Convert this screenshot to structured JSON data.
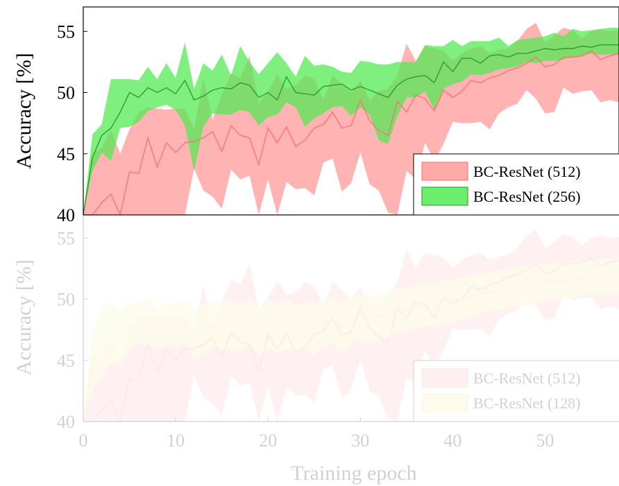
{
  "chart_data": [
    {
      "type": "area",
      "xlabel": "",
      "ylabel": "Accuracy [%]",
      "xlim": [
        0,
        58
      ],
      "ylim": [
        40,
        57
      ],
      "yticks": [
        "40",
        "45",
        "50",
        "55"
      ],
      "xticks": [],
      "legend": {
        "placement": "bottom-right"
      },
      "series": [
        {
          "name": "BC-ResNet (512)",
          "color": "#ff6b6b",
          "fill": "#ff9a9a",
          "x": [
            0,
            1,
            2,
            3,
            4,
            5,
            6,
            7,
            8,
            9,
            10,
            11,
            12,
            13,
            14,
            15,
            16,
            17,
            18,
            19,
            20,
            21,
            22,
            23,
            24,
            25,
            26,
            27,
            28,
            29,
            30,
            31,
            32,
            33,
            34,
            35,
            36,
            37,
            38,
            39,
            40,
            41,
            42,
            43,
            44,
            45,
            46,
            47,
            48,
            49,
            50,
            51,
            52,
            53,
            54,
            55,
            56,
            57,
            58
          ],
          "mean": [
            40,
            37,
            41,
            41.7,
            39.5,
            43.5,
            43.4,
            46.3,
            43.9,
            45.9,
            45.1,
            45.9,
            46,
            46.3,
            46.8,
            45.2,
            47.3,
            46.5,
            46.3,
            44.1,
            47.1,
            45.9,
            47.2,
            45.6,
            46.1,
            47.1,
            47.4,
            48.4,
            47.1,
            47.3,
            49.4,
            47.7,
            46.9,
            46.5,
            49.3,
            48.4,
            49.8,
            49.5,
            48.5,
            50.2,
            49.6,
            50.1,
            51,
            50.8,
            51.2,
            51.4,
            51.8,
            52,
            52.4,
            52.9,
            52.1,
            52.3,
            52.9,
            52.9,
            53,
            53.4,
            52.7,
            53,
            53.2
          ],
          "upper": [
            40,
            45,
            45.5,
            47,
            45,
            47,
            48.4,
            48.8,
            48.7,
            48.6,
            48.7,
            48.7,
            47,
            51.2,
            47.8,
            49.8,
            51.6,
            51.2,
            53,
            49.1,
            50.1,
            51.5,
            50.3,
            50.6,
            51.4,
            51.1,
            49.4,
            51.4,
            50.7,
            50,
            51,
            49.4,
            50.1,
            50.3,
            51.4,
            54,
            52.6,
            53.8,
            53.6,
            53.4,
            52.6,
            53.2,
            53.6,
            53.8,
            53.2,
            53.5,
            53.6,
            54.2,
            55.2,
            55.7,
            54.1,
            54.7,
            55.3,
            55.1,
            54.4,
            55,
            55.2,
            55,
            55.1
          ],
          "lower": [
            40,
            33,
            36,
            37,
            36,
            37,
            38,
            38,
            38,
            38,
            38,
            40,
            43.8,
            42,
            41.5,
            40.5,
            43.7,
            42.9,
            43.2,
            38.5,
            42.9,
            38.6,
            42.7,
            42.1,
            42.2,
            41.6,
            44.3,
            44.6,
            41.9,
            42.6,
            45.1,
            42.5,
            42,
            40.2,
            38.9,
            43.6,
            42.9,
            45.9,
            44.4,
            45.8,
            47.6,
            47.5,
            47.5,
            47.6,
            47,
            48.3,
            48.8,
            49.1,
            50.2,
            49.5,
            48.3,
            48.4,
            50.4,
            49.9,
            50.1,
            50.2,
            49.2,
            49.4,
            49.2
          ]
        },
        {
          "name": "BC-ResNet (256)",
          "color": "#1e9a1e",
          "fill": "#54ea54",
          "x": [
            0,
            1,
            2,
            3,
            4,
            5,
            6,
            7,
            8,
            9,
            10,
            11,
            12,
            13,
            14,
            15,
            16,
            17,
            18,
            19,
            20,
            21,
            22,
            23,
            24,
            25,
            26,
            27,
            28,
            29,
            30,
            31,
            32,
            33,
            34,
            35,
            36,
            37,
            38,
            39,
            40,
            41,
            42,
            43,
            44,
            45,
            46,
            47,
            48,
            49,
            50,
            51,
            52,
            53,
            54,
            55,
            56,
            57,
            58
          ],
          "mean": [
            40,
            44.7,
            46.5,
            47.1,
            48.4,
            50,
            49.6,
            50.4,
            50,
            50.4,
            49.9,
            51,
            49.4,
            49.7,
            50.2,
            50.4,
            50.3,
            50.8,
            50.6,
            49.6,
            50,
            49.4,
            51.3,
            50,
            49.9,
            49.8,
            50.5,
            50.6,
            50.7,
            50.2,
            50.5,
            50.2,
            49.9,
            49.6,
            50.6,
            51.1,
            51.3,
            51.4,
            50.8,
            52.5,
            51.7,
            52.8,
            52.8,
            52.4,
            53,
            53.1,
            52.9,
            53.2,
            53.2,
            53.4,
            53.6,
            53.5,
            53.6,
            53.6,
            53.8,
            53.7,
            53.9,
            53.9,
            53.9
          ],
          "upper": [
            40,
            46.6,
            47.4,
            51.1,
            51.1,
            51.1,
            51,
            52.1,
            51.1,
            52.4,
            51.2,
            54.1,
            50.3,
            52.4,
            51.8,
            53.1,
            51.4,
            53.8,
            52.5,
            51.5,
            52.4,
            53.3,
            52.4,
            51.3,
            53,
            52.2,
            52.3,
            52.1,
            51.7,
            51.6,
            52.6,
            52.5,
            52.3,
            52.3,
            52.5,
            52.5,
            52.5,
            53.9,
            53.8,
            53.8,
            54.3,
            53.8,
            54.2,
            54.2,
            54.2,
            54.5,
            53.8,
            54.3,
            54.4,
            54.5,
            54.6,
            54.9,
            54.6,
            55.2,
            55,
            55.1,
            55.2,
            55.3,
            55.3
          ],
          "lower": [
            40,
            43.6,
            45.1,
            44.4,
            47.1,
            47.2,
            47.6,
            48.5,
            48.8,
            49,
            48.6,
            47.3,
            43.6,
            47.2,
            48.3,
            48.2,
            48.2,
            48.6,
            48.4,
            47.3,
            48,
            48.2,
            49.2,
            48.8,
            47.2,
            47.9,
            48.3,
            48.8,
            48.9,
            48.1,
            48.8,
            48.2,
            46.1,
            45.8,
            48.1,
            49.6,
            49.6,
            50.1,
            48.6,
            50.3,
            50.7,
            50.9,
            51.5,
            51.4,
            51.6,
            51.9,
            52,
            52.1,
            52.5,
            52.4,
            52.6,
            52.6,
            52.7,
            52.9,
            53,
            53.2,
            53.1,
            53.1,
            53.2
          ]
        }
      ]
    },
    {
      "type": "area",
      "xlabel": "Training epoch",
      "ylabel": "Accuracy [%]",
      "xlim": [
        0,
        58
      ],
      "ylim": [
        40,
        57
      ],
      "yticks": [
        "40",
        "45",
        "50",
        "55"
      ],
      "xticks": [
        "0",
        "10",
        "20",
        "30",
        "40",
        "50"
      ],
      "legend": {
        "placement": "bottom-right"
      },
      "faded": true,
      "series": [
        {
          "name": "BC-ResNet (512)",
          "color": "#ff6b6b",
          "fill": "#ff9a9a",
          "x": [
            0,
            1,
            2,
            3,
            4,
            5,
            6,
            7,
            8,
            9,
            10,
            11,
            12,
            13,
            14,
            15,
            16,
            17,
            18,
            19,
            20,
            21,
            22,
            23,
            24,
            25,
            26,
            27,
            28,
            29,
            30,
            31,
            32,
            33,
            34,
            35,
            36,
            37,
            38,
            39,
            40,
            41,
            42,
            43,
            44,
            45,
            46,
            47,
            48,
            49,
            50,
            51,
            52,
            53,
            54,
            55,
            56,
            57,
            58
          ],
          "mean": [
            40,
            37,
            41,
            41.7,
            39.5,
            43.5,
            43.4,
            46.3,
            43.9,
            45.9,
            45.1,
            45.9,
            46,
            46.3,
            46.8,
            45.2,
            47.3,
            46.5,
            46.3,
            44.1,
            47.1,
            45.9,
            47.2,
            45.6,
            46.1,
            47.1,
            47.4,
            48.4,
            47.1,
            47.3,
            49.4,
            47.7,
            46.9,
            46.5,
            49.3,
            48.4,
            49.8,
            49.5,
            48.5,
            50.2,
            49.6,
            50.1,
            51,
            50.8,
            51.2,
            51.4,
            51.8,
            52,
            52.4,
            52.9,
            52.1,
            52.3,
            52.9,
            52.9,
            53,
            53.4,
            52.7,
            53,
            53.2
          ],
          "upper": [
            40,
            45,
            45.5,
            47,
            45,
            47,
            48.4,
            48.8,
            48.7,
            48.6,
            48.7,
            48.7,
            47,
            51.2,
            47.8,
            49.8,
            51.6,
            51.2,
            53,
            49.1,
            50.1,
            51.5,
            50.3,
            50.6,
            51.4,
            51.1,
            49.4,
            51.4,
            50.7,
            50,
            51,
            49.4,
            50.1,
            50.3,
            51.4,
            54,
            52.6,
            53.8,
            53.6,
            53.4,
            52.6,
            53.2,
            53.6,
            53.8,
            53.2,
            53.5,
            53.6,
            54.2,
            55.2,
            55.7,
            54.1,
            54.7,
            55.3,
            55.1,
            54.4,
            55,
            55.2,
            55,
            55.1
          ],
          "lower": [
            40,
            33,
            36,
            37,
            36,
            37,
            38,
            38,
            38,
            38,
            38,
            40,
            43.8,
            42,
            41.5,
            40.5,
            43.7,
            42.9,
            43.2,
            38.5,
            42.9,
            38.6,
            42.7,
            42.1,
            42.2,
            41.6,
            44.3,
            44.6,
            41.9,
            42.6,
            45.1,
            42.5,
            42,
            40.2,
            38.9,
            43.6,
            42.9,
            45.9,
            44.4,
            45.8,
            47.6,
            47.5,
            47.5,
            47.6,
            47,
            48.3,
            48.8,
            49.1,
            50.2,
            49.5,
            48.3,
            48.4,
            50.4,
            49.9,
            50.1,
            50.2,
            49.2,
            49.4,
            49.2
          ]
        },
        {
          "name": "BC-ResNet (128)",
          "color": "#d8d84a",
          "fill": "#f4f08a",
          "x": [
            0,
            1,
            2,
            3,
            4,
            5,
            6,
            7,
            8,
            9,
            10,
            11,
            12,
            13,
            14,
            15,
            16,
            17,
            18,
            19,
            20,
            21,
            22,
            23,
            24,
            25,
            26,
            27,
            28,
            29,
            30,
            31,
            32,
            33,
            34,
            35,
            36,
            37,
            38,
            39,
            40,
            41,
            42,
            43,
            44,
            45,
            46,
            47,
            48,
            49,
            50,
            51,
            52,
            53,
            54,
            55,
            56,
            57,
            58
          ],
          "mean": [
            40,
            45,
            46.5,
            47.2,
            46.8,
            47.6,
            48.2,
            48.1,
            47.6,
            48,
            47.8,
            48.2,
            47.1,
            47.6,
            47.9,
            47.8,
            48,
            47.5,
            48.2,
            47.4,
            48,
            47.6,
            48,
            47.6,
            47.9,
            47.5,
            48,
            48.3,
            47.7,
            48.4,
            48.5,
            48.3,
            48.6,
            48.7,
            49.1,
            49.2,
            49.4,
            49.6,
            49.4,
            49.9,
            49.8,
            50.1,
            50.2,
            50.5,
            50.6,
            50.7,
            50.9,
            51,
            51.1,
            51.2,
            51.4,
            51.5,
            51.5,
            51.6,
            51.7,
            51.8,
            51.8,
            51.9,
            51.9
          ],
          "upper": [
            40,
            47.5,
            49.2,
            49.7,
            49,
            49.5,
            49.9,
            50.1,
            49.2,
            49.8,
            49.5,
            50,
            49.2,
            49.6,
            49.8,
            49.7,
            50,
            49.5,
            50.1,
            49.4,
            50,
            49.6,
            50,
            49.5,
            49.8,
            49.6,
            49.9,
            50.2,
            49.8,
            50.3,
            50.4,
            50.2,
            50.5,
            50.6,
            50.9,
            51,
            51.2,
            51.4,
            51.2,
            51.6,
            51.6,
            51.8,
            51.9,
            52.1,
            52.2,
            52.3,
            52.5,
            52.6,
            52.7,
            52.8,
            52.9,
            53,
            53,
            53.1,
            53.2,
            53.2,
            53.3,
            53.3,
            53.3
          ],
          "lower": [
            40,
            42.5,
            43.8,
            44.7,
            44.6,
            45.7,
            46.5,
            46.1,
            46,
            46.2,
            46.1,
            46.4,
            45,
            45.6,
            46,
            45.9,
            46,
            45.5,
            46.3,
            45.4,
            46,
            45.6,
            46,
            45.7,
            46,
            45.4,
            46.1,
            46.4,
            45.6,
            46.5,
            46.6,
            46.4,
            46.7,
            46.8,
            47.3,
            47.4,
            47.6,
            47.8,
            47.6,
            48.2,
            48,
            48.4,
            48.5,
            48.9,
            49,
            49.1,
            49.3,
            49.4,
            49.5,
            49.6,
            49.9,
            50,
            50,
            50.1,
            50.2,
            50.4,
            50.3,
            50.5,
            50.5
          ]
        }
      ]
    }
  ]
}
